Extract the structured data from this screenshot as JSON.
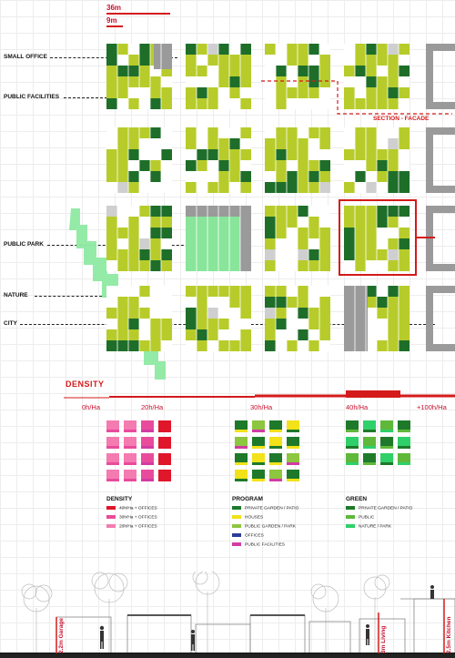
{
  "scale": {
    "major": "36m",
    "minor": "9m"
  },
  "labels": {
    "small_office": "SMALL OFFICE",
    "public_facilities": "PUBLIC FACILITIES",
    "public_park": "PUBLIC PARK",
    "nature": "NATURE",
    "city": "CITY",
    "section_facade": "SECTION - FACADE"
  },
  "density": {
    "title": "DENSITY",
    "levels": [
      "0h/Ha",
      "20h/Ha",
      "30h/Ha",
      "40h/Ha",
      "+100h/Ha"
    ]
  },
  "legends": {
    "density": {
      "title": "DENSITY",
      "items": [
        {
          "label": "40h/Ha + OFFICES",
          "color": "#e0162b"
        },
        {
          "label": "30h/Ha + OFFICES",
          "color": "#e94b9c"
        },
        {
          "label": "20h/Ha + OFFICES",
          "color": "#f47bb0"
        }
      ]
    },
    "program": {
      "title": "PROGRAM",
      "items": [
        {
          "label": "PRIVATE GARDEN / PATIO",
          "color": "#1e7a2a"
        },
        {
          "label": "HOUSES",
          "color": "#f2e21a"
        },
        {
          "label": "PUBLIC GARDEN / PARK",
          "color": "#8dc63f"
        },
        {
          "label": "OFFICES",
          "color": "#2b3d9a"
        },
        {
          "label": "PUBLIC FACILITIES",
          "color": "#d23ba3"
        }
      ]
    },
    "green": {
      "title": "GREEN",
      "items": [
        {
          "label": "PRIVATE GARDEN / PATIO",
          "color": "#1e7a2a"
        },
        {
          "label": "PUBLIC",
          "color": "#5fb83a"
        },
        {
          "label": "NATURE / PARK",
          "color": "#2fd06a"
        }
      ]
    }
  },
  "section": {
    "heights": [
      "2.2m Garage",
      "3m Living",
      "2.5m Kitchen"
    ]
  },
  "colors": {
    "accent_red": "#d41a1a",
    "lime": "#b7cc2a",
    "dark_green": "#1e6e2a",
    "light_green": "#88e59a",
    "grey": "#9a9a9a"
  }
}
